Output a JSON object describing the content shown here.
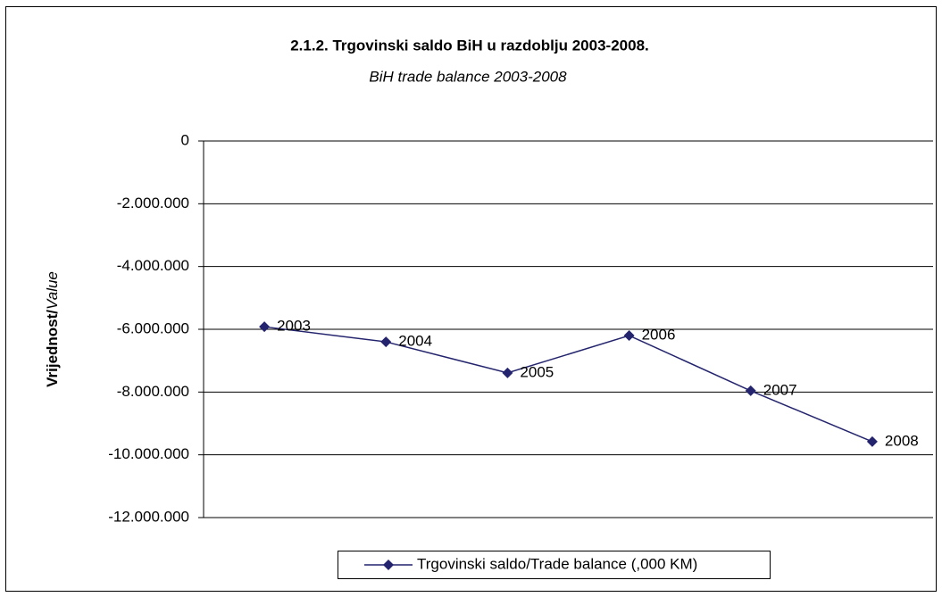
{
  "chart_data": {
    "type": "line",
    "title": "2.1.2. Trgovinski saldo BiH u razdoblju 2003-2008.",
    "subtitle": "BiH trade balance 2003-2008",
    "ylabel": [
      "Vrijednost/",
      "Value"
    ],
    "categories": [
      "2003",
      "2004",
      "2005",
      "2006",
      "2007",
      "2008"
    ],
    "series": [
      {
        "name": "Trgovinski saldo/Trade balance (,000 KM)",
        "color": "#24246e",
        "values": [
          -5920000,
          -6400000,
          -7390000,
          -6200000,
          -7960000,
          -9580000
        ]
      }
    ],
    "ylim": [
      -12000000,
      0
    ],
    "yticks": [
      0,
      {
        "value": -2000000,
        "label": "-2.000.000"
      },
      {
        "value": -4000000,
        "label": "-4.000.000"
      },
      {
        "value": -6000000,
        "label": "-6.000.000"
      },
      {
        "value": -8000000,
        "label": "-8.000.000"
      },
      {
        "value": -10000000,
        "label": "-10.000.000"
      },
      {
        "value": -12000000,
        "label": "-12.000.000"
      }
    ],
    "grid": true,
    "legend": "bottom"
  }
}
